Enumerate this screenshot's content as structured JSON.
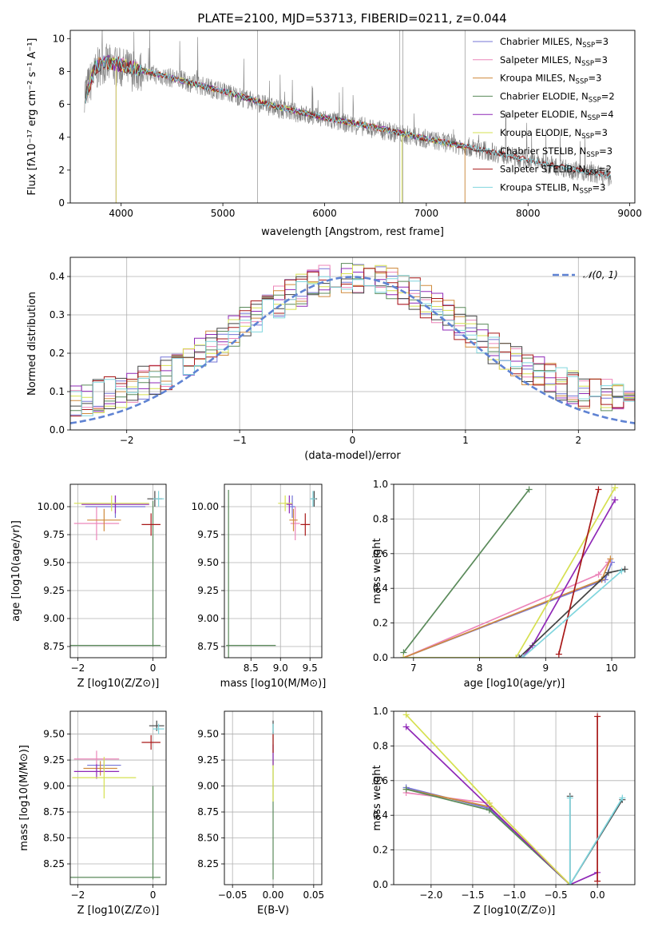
{
  "figure_title": "PLATE=2100, MJD=53713, FIBERID=0211, z=0.044",
  "colors": {
    "series": [
      "#7474d6",
      "#ec86ba",
      "#cf8a3c",
      "#5a8a5a",
      "#8f28b7",
      "#d6e050",
      "#444444",
      "#a81818",
      "#80d6de"
    ],
    "gauss": "#5f83d3",
    "spectrum": "#808080",
    "grid": "#b0b0b0"
  },
  "chart_data": [
    {
      "id": "spectrum",
      "type": "line",
      "title": "PLATE=2100, MJD=53713, FIBERID=0211, z=0.044",
      "xlabel": "wavelength [Angstrom, rest frame]",
      "ylabel": "Flux [f_λ 10^-17 erg cm^-2 s^-1 A^-1]",
      "xlim": [
        3500,
        9050
      ],
      "ylim": [
        0,
        10.5
      ],
      "xticks": [
        4000,
        5000,
        6000,
        7000,
        8000,
        9000
      ],
      "yticks": [
        0,
        2,
        4,
        6,
        8,
        10
      ],
      "grid": false,
      "legend_position": "top-right",
      "series": [
        {
          "name": "Chabrier MILES, N_SSP=3",
          "color": "#7474d6"
        },
        {
          "name": "Salpeter MILES, N_SSP=3",
          "color": "#ec86ba"
        },
        {
          "name": "Kroupa MILES, N_SSP=3",
          "color": "#cf8a3c"
        },
        {
          "name": "Chabrier ELODIE, N_SSP=2",
          "color": "#5a8a5a"
        },
        {
          "name": "Salpeter ELODIE, N_SSP=4",
          "color": "#8f28b7"
        },
        {
          "name": "Kroupa ELODIE, N_SSP=3",
          "color": "#d6e050"
        },
        {
          "name": "Chabrier STELIB, N_SSP=3",
          "color": "#444444"
        },
        {
          "name": "Salpeter STELIB, N_SSP=2",
          "color": "#a81818"
        },
        {
          "name": "Kroupa STELIB, N_SSP=3",
          "color": "#80d6de"
        }
      ],
      "observed_trend": {
        "x": [
          3650,
          3800,
          4000,
          4500,
          5000,
          5500,
          6000,
          6500,
          7000,
          7500,
          8000,
          8500,
          8800
        ],
        "y": [
          6.8,
          8.5,
          8.2,
          7.6,
          6.8,
          5.8,
          5.1,
          4.5,
          3.9,
          3.3,
          2.6,
          1.95,
          1.6
        ]
      },
      "model_trend": {
        "x": [
          3650,
          3750,
          3850,
          4000,
          4500,
          5000,
          5500,
          6000,
          6500,
          7000,
          7500,
          8000,
          8500,
          8800
        ],
        "y": [
          6.5,
          8.3,
          8.6,
          8.4,
          7.6,
          6.8,
          5.9,
          5.2,
          4.6,
          3.9,
          3.3,
          2.6,
          2.0,
          1.7
        ]
      },
      "dropouts": [
        {
          "x": 3950,
          "series": [
            4,
            5
          ]
        },
        {
          "x": 6760,
          "series": [
            5
          ]
        },
        {
          "x": 7380,
          "series": [
            2
          ]
        }
      ],
      "spikes": [
        5340,
        6740,
        6770,
        7380
      ]
    },
    {
      "id": "residuals",
      "type": "histogram",
      "xlabel": "(data-model)/error",
      "ylabel": "Normed distribution",
      "xlim": [
        -2.5,
        2.5
      ],
      "ylim": [
        0,
        0.45
      ],
      "xticks": [
        -2,
        -1,
        0,
        1,
        2
      ],
      "yticks": [
        0.0,
        0.1,
        0.2,
        0.3,
        0.4
      ],
      "grid": true,
      "legend_position": "top-right",
      "gauss_label": "𝒩(0, 1)",
      "bin_width": 0.1
    },
    {
      "id": "age-vs-Z",
      "type": "errorbar",
      "xlabel": "Z [log10(Z/Z⊙)]",
      "ylabel": "age  [log10(age/yr)]",
      "xlim": [
        -2.2,
        0.35
      ],
      "ylim": [
        8.65,
        10.2
      ],
      "xticks": [
        -2,
        0
      ],
      "yticks": [
        8.75,
        9.0,
        9.25,
        9.5,
        9.75,
        10.0
      ],
      "grid": true,
      "points": [
        {
          "s": 0,
          "x": -1.0,
          "y": 10.0,
          "xerr": 0.8,
          "yerr": 0.1
        },
        {
          "s": 1,
          "x": -1.5,
          "y": 9.85,
          "xerr": 0.6,
          "yerr": 0.15
        },
        {
          "s": 2,
          "x": -1.3,
          "y": 9.88,
          "xerr": 0.45,
          "yerr": 0.1
        },
        {
          "s": 3,
          "x": -1.0,
          "y": 8.76,
          "xerr": 1.2,
          "yerr": 0.0
        },
        {
          "s": 3,
          "x": 0.0,
          "y": 9.4,
          "xerr": 0.0,
          "yerr": 0.65
        },
        {
          "s": 4,
          "x": -1.0,
          "y": 10.02,
          "xerr": 0.9,
          "yerr": 0.08
        },
        {
          "s": 5,
          "x": -1.1,
          "y": 10.03,
          "xerr": 1.0,
          "yerr": 0.07
        },
        {
          "s": 6,
          "x": 0.05,
          "y": 10.07,
          "xerr": 0.2,
          "yerr": 0.07
        },
        {
          "s": 7,
          "x": -0.05,
          "y": 9.84,
          "xerr": 0.25,
          "yerr": 0.1
        },
        {
          "s": 8,
          "x": 0.15,
          "y": 10.07,
          "xerr": 0.15,
          "yerr": 0.07
        }
      ]
    },
    {
      "id": "age-vs-mass",
      "type": "errorbar",
      "xlabel": "mass [log10(M/M⊙)]",
      "ylabel": "",
      "xlim": [
        8.05,
        9.7
      ],
      "ylim": [
        8.65,
        10.2
      ],
      "xticks": [
        8.5,
        9.0,
        9.5
      ],
      "yticks": [
        8.75,
        9.0,
        9.25,
        9.5,
        9.75,
        10.0
      ],
      "grid": true,
      "points": [
        {
          "s": 0,
          "x": 9.2,
          "y": 10.0,
          "xerr": 0.05,
          "yerr": 0.1
        },
        {
          "s": 1,
          "x": 9.25,
          "y": 9.85,
          "xerr": 0.08,
          "yerr": 0.15
        },
        {
          "s": 2,
          "x": 9.22,
          "y": 9.88,
          "xerr": 0.07,
          "yerr": 0.1
        },
        {
          "s": 3,
          "x": 8.5,
          "y": 8.76,
          "xerr": 0.42,
          "yerr": 0.0
        },
        {
          "s": 3,
          "x": 8.12,
          "y": 9.4,
          "xerr": 0.0,
          "yerr": 0.75
        },
        {
          "s": 4,
          "x": 9.15,
          "y": 10.02,
          "xerr": 0.05,
          "yerr": 0.08
        },
        {
          "s": 5,
          "x": 9.08,
          "y": 10.03,
          "xerr": 0.12,
          "yerr": 0.07
        },
        {
          "s": 6,
          "x": 9.57,
          "y": 10.07,
          "xerr": 0.05,
          "yerr": 0.07
        },
        {
          "s": 7,
          "x": 9.42,
          "y": 9.84,
          "xerr": 0.08,
          "yerr": 0.1
        },
        {
          "s": 8,
          "x": 9.55,
          "y": 10.07,
          "xerr": 0.05,
          "yerr": 0.07
        }
      ]
    },
    {
      "id": "weight-vs-age",
      "type": "line",
      "xlabel": "age  [log10(age/yr)]",
      "ylabel": "mass weight",
      "xlim": [
        6.7,
        10.35
      ],
      "ylim": [
        0,
        1.0
      ],
      "xticks": [
        7,
        8,
        9,
        10
      ],
      "yticks": [
        0.0,
        0.2,
        0.4,
        0.6,
        0.8,
        1.0
      ],
      "grid": true,
      "series": [
        {
          "s": 0,
          "x": [
            6.85,
            9.9,
            10.0
          ],
          "y": [
            0.0,
            0.45,
            0.55
          ]
        },
        {
          "s": 1,
          "x": [
            6.85,
            9.8,
            9.95
          ],
          "y": [
            0.0,
            0.48,
            0.55
          ]
        },
        {
          "s": 2,
          "x": [
            6.85,
            9.85,
            9.98
          ],
          "y": [
            0.0,
            0.45,
            0.57
          ]
        },
        {
          "s": 3,
          "x": [
            6.85,
            8.75
          ],
          "y": [
            0.03,
            0.97
          ]
        },
        {
          "s": 4,
          "x": [
            8.65,
            8.8,
            10.05
          ],
          "y": [
            0.0,
            0.07,
            0.91
          ]
        },
        {
          "s": 5,
          "x": [
            6.85,
            8.55,
            10.05
          ],
          "y": [
            0.0,
            0.0,
            0.98
          ]
        },
        {
          "s": 6,
          "x": [
            8.6,
            9.95,
            10.2
          ],
          "y": [
            0.0,
            0.49,
            0.51
          ]
        },
        {
          "s": 7,
          "x": [
            9.2,
            9.8
          ],
          "y": [
            0.02,
            0.97
          ]
        },
        {
          "s": 8,
          "x": [
            8.65,
            10.15
          ],
          "y": [
            0.0,
            0.5
          ]
        }
      ]
    },
    {
      "id": "mass-vs-Z",
      "type": "errorbar",
      "xlabel": "Z [log10(Z/Z⊙)]",
      "ylabel": "mass [log10(M/M⊙)]",
      "xlim": [
        -2.2,
        0.35
      ],
      "ylim": [
        8.05,
        9.72
      ],
      "xticks": [
        -2,
        0
      ],
      "yticks": [
        8.25,
        8.5,
        8.75,
        9.0,
        9.25,
        9.5
      ],
      "grid": true,
      "points": [
        {
          "s": 0,
          "x": -1.3,
          "y": 9.2,
          "xerr": 0.45,
          "yerr": 0.05
        },
        {
          "s": 1,
          "x": -1.5,
          "y": 9.26,
          "xerr": 0.6,
          "yerr": 0.08
        },
        {
          "s": 2,
          "x": -1.4,
          "y": 9.17,
          "xerr": 0.45,
          "yerr": 0.07
        },
        {
          "s": 3,
          "x": -1.0,
          "y": 8.12,
          "xerr": 1.2,
          "yerr": 0.0
        },
        {
          "s": 3,
          "x": 0.0,
          "y": 8.55,
          "xerr": 0.0,
          "yerr": 0.45
        },
        {
          "s": 4,
          "x": -1.5,
          "y": 9.14,
          "xerr": 0.6,
          "yerr": 0.07
        },
        {
          "s": 5,
          "x": -1.3,
          "y": 9.08,
          "xerr": 0.85,
          "yerr": 0.2
        },
        {
          "s": 6,
          "x": 0.1,
          "y": 9.58,
          "xerr": 0.2,
          "yerr": 0.05
        },
        {
          "s": 7,
          "x": -0.05,
          "y": 9.42,
          "xerr": 0.25,
          "yerr": 0.07
        },
        {
          "s": 8,
          "x": 0.15,
          "y": 9.55,
          "xerr": 0.15,
          "yerr": 0.05
        }
      ]
    },
    {
      "id": "mass-vs-EBV",
      "type": "errorbar",
      "xlabel": "E(B-V)",
      "ylabel": "",
      "xlim": [
        -0.06,
        0.06
      ],
      "ylim": [
        8.05,
        9.72
      ],
      "xticks": [
        -0.05,
        0.0,
        0.05
      ],
      "yticks": [
        8.25,
        8.5,
        8.75,
        9.0,
        9.25,
        9.5
      ],
      "grid": true,
      "points": [
        {
          "s": 3,
          "x": 0.0,
          "y": 8.85,
          "xerr": 0.0,
          "yerr": 0.75
        },
        {
          "s": 5,
          "x": 0.0,
          "y": 9.05,
          "xerr": 0.0,
          "yerr": 0.2
        },
        {
          "s": 4,
          "x": 0.0,
          "y": 9.3,
          "xerr": 0.0,
          "yerr": 0.1
        },
        {
          "s": 7,
          "x": 0.0,
          "y": 9.42,
          "xerr": 0.0,
          "yerr": 0.1
        },
        {
          "s": 6,
          "x": 0.0,
          "y": 9.57,
          "xerr": 0.0,
          "yerr": 0.06
        },
        {
          "s": 8,
          "x": 0.0,
          "y": 9.55,
          "xerr": 0.0,
          "yerr": 0.05
        }
      ]
    },
    {
      "id": "weight-vs-Z",
      "type": "line",
      "xlabel": "Z [log10(Z/Z⊙)]",
      "ylabel": "mass weight",
      "xlim": [
        -2.45,
        0.45
      ],
      "ylim": [
        0,
        1.0
      ],
      "xticks": [
        -2.0,
        -1.5,
        -1.0,
        -0.5,
        0.0
      ],
      "yticks": [
        0.0,
        0.2,
        0.4,
        0.6,
        0.8,
        1.0
      ],
      "grid": true,
      "series": [
        {
          "s": 0,
          "x": [
            -2.3,
            -1.3,
            -0.33
          ],
          "y": [
            0.56,
            0.44,
            0.0
          ]
        },
        {
          "s": 1,
          "x": [
            -2.3,
            -1.3,
            -0.33
          ],
          "y": [
            0.53,
            0.47,
            0.0
          ]
        },
        {
          "s": 2,
          "x": [
            -2.3,
            -1.3,
            -0.33
          ],
          "y": [
            0.55,
            0.45,
            0.0
          ]
        },
        {
          "s": 3,
          "x": [
            -2.3,
            -1.3,
            -0.33
          ],
          "y": [
            0.55,
            0.43,
            0.0
          ]
        },
        {
          "s": 4,
          "x": [
            -2.3,
            -0.33,
            0.0
          ],
          "y": [
            0.91,
            0.0,
            0.07
          ]
        },
        {
          "s": 5,
          "x": [
            -2.3,
            -1.3,
            -0.33
          ],
          "y": [
            0.98,
            0.47,
            0.0
          ]
        },
        {
          "s": 6,
          "x": [
            -0.33,
            -0.33,
            0.3
          ],
          "y": [
            0.51,
            0.0,
            0.49
          ]
        },
        {
          "s": 7,
          "x": [
            0.0,
            0.0
          ],
          "y": [
            0.02,
            0.97
          ]
        },
        {
          "s": 8,
          "x": [
            -0.33,
            -0.33,
            0.3
          ],
          "y": [
            0.5,
            0.0,
            0.5
          ]
        }
      ]
    }
  ]
}
